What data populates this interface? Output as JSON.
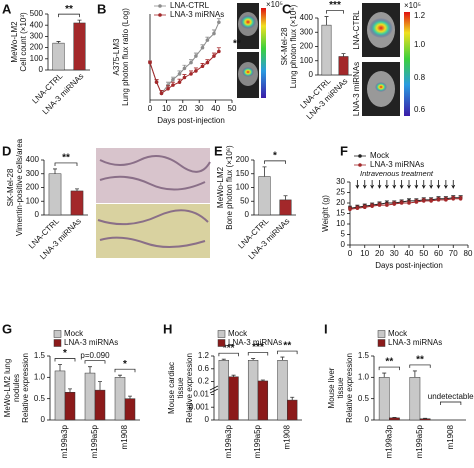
{
  "chart_data": [
    {
      "panel": "A",
      "type": "bar",
      "ylabel": [
        "MeWo-LM2",
        "Cell count (×10³)"
      ],
      "categories": [
        "LNA-CTRL",
        "LNA-3 miRNAs"
      ],
      "values": [
        240,
        420
      ],
      "errors": [
        15,
        25
      ],
      "colors": [
        "#c8c8c8",
        "#a3282a"
      ],
      "ylim": [
        0,
        500
      ],
      "yticks": [
        0,
        100,
        200,
        300,
        400,
        500
      ],
      "annotations": [
        "**"
      ]
    },
    {
      "panel": "B",
      "type": "line",
      "log": true,
      "ylabel": [
        "A375-LM3",
        "Lung photon flux ratio (Log)"
      ],
      "xlabel": "Days post-injection",
      "xlim": [
        0,
        50
      ],
      "xticks": [
        0,
        10,
        20,
        30,
        40,
        50
      ],
      "ylim": [
        0.1,
        20
      ],
      "x": [
        0,
        4,
        7,
        11,
        14,
        18,
        21,
        25,
        28,
        32,
        35,
        39,
        42
      ],
      "series": [
        {
          "name": "LNA-CTRL",
          "color": "#8c8c8c",
          "values": [
            1,
            0.3,
            0.15,
            0.25,
            0.35,
            0.5,
            0.7,
            1,
            1.5,
            2.5,
            4,
            6,
            12
          ],
          "errors": [
            0.1,
            0.05,
            0.03,
            0.05,
            0.06,
            0.1,
            0.15,
            0.2,
            0.3,
            0.5,
            0.8,
            1.5,
            3
          ]
        },
        {
          "name": "LNA-3 miRNAs",
          "color": "#a3282a",
          "values": [
            1,
            0.3,
            0.15,
            0.2,
            0.25,
            0.3,
            0.4,
            0.5,
            0.6,
            0.8,
            1,
            1.5,
            2
          ],
          "errors": [
            0.1,
            0.05,
            0.03,
            0.04,
            0.05,
            0.06,
            0.08,
            0.1,
            0.12,
            0.15,
            0.2,
            0.3,
            0.5
          ]
        }
      ],
      "annotations": [
        "**"
      ]
    },
    {
      "panel": "C",
      "type": "bar",
      "ylabel": [
        "SK-Mel-28",
        "Lung photon flux (×10⁶)"
      ],
      "categories": [
        "LNA-CTRL",
        "LNA-3 miRNAs"
      ],
      "values": [
        350,
        130
      ],
      "errors": [
        60,
        20
      ],
      "colors": [
        "#c8c8c8",
        "#a3282a"
      ],
      "ylim": [
        0,
        400
      ],
      "yticks": [
        0,
        100,
        200,
        300,
        400
      ],
      "annotations": [
        "***"
      ]
    },
    {
      "panel": "D",
      "type": "bar",
      "ylabel": [
        "SK-Mel-28",
        "Vimentin-positive cells/area"
      ],
      "categories": [
        "LNA-CTRL",
        "LNA-3 miRNAs"
      ],
      "values": [
        300,
        175
      ],
      "errors": [
        35,
        15
      ],
      "colors": [
        "#c8c8c8",
        "#a3282a"
      ],
      "ylim": [
        0,
        400
      ],
      "yticks": [
        0,
        100,
        200,
        300,
        400
      ],
      "annotations": [
        "**"
      ]
    },
    {
      "panel": "E",
      "type": "bar",
      "ylabel": [
        "MeWo-LM2",
        "Bone photon flux (×10⁶)"
      ],
      "categories": [
        "LNA-CTRL",
        "LNA-3 miRNAs"
      ],
      "values": [
        140,
        55
      ],
      "errors": [
        35,
        15
      ],
      "colors": [
        "#c8c8c8",
        "#a3282a"
      ],
      "ylim": [
        0,
        200
      ],
      "yticks": [
        0,
        50,
        100,
        150,
        200
      ],
      "annotations": [
        "*"
      ]
    },
    {
      "panel": "F",
      "type": "line",
      "ylabel": [
        "Weight (g)"
      ],
      "xlabel": "Days post-injection",
      "xlim": [
        0,
        80
      ],
      "xticks": [
        0,
        10,
        20,
        30,
        40,
        50,
        60,
        70,
        80
      ],
      "ylim": [
        0,
        30
      ],
      "yticks": [
        0,
        5,
        10,
        15,
        20,
        25,
        30
      ],
      "x": [
        0,
        5,
        10,
        15,
        20,
        25,
        30,
        35,
        40,
        45,
        50,
        55,
        60,
        65,
        70,
        75
      ],
      "series": [
        {
          "name": "Mock",
          "color": "#222222",
          "values": [
            17.5,
            18,
            18.5,
            19,
            19.5,
            20,
            20,
            20.5,
            21,
            21,
            21.5,
            21.5,
            22,
            22,
            22.5,
            22.5
          ],
          "errors": [
            1,
            1,
            1,
            1,
            1,
            1,
            1,
            1,
            1,
            1,
            1,
            1,
            1,
            1,
            1,
            1
          ]
        },
        {
          "name": "LNA-3 miRNAs",
          "color": "#a3282a",
          "values": [
            17,
            17.5,
            18,
            18.5,
            19,
            19,
            19.5,
            20,
            20,
            20.5,
            21,
            21,
            21.5,
            21.5,
            22,
            22
          ],
          "errors": [
            1,
            1,
            1,
            1,
            1,
            1,
            1,
            1,
            1,
            1,
            1,
            1,
            1,
            1,
            1,
            1
          ]
        }
      ],
      "annotations": [
        "Intravenous treatment"
      ]
    },
    {
      "panel": "G",
      "type": "bar",
      "ylabel": [
        "MeWo-LM2 lung",
        "nodules",
        "Relative expression"
      ],
      "categories": [
        "m199a3p",
        "m199a5p",
        "m1908"
      ],
      "ylim": [
        0,
        1.5
      ],
      "yticks": [
        0,
        0.5,
        {
          "value": 1,
          "label": "1.0"
        },
        1.5
      ],
      "series": [
        {
          "name": "Mock",
          "color": "#c8c8c8",
          "values": [
            1.15,
            1.1,
            1.0
          ],
          "errors": [
            0.15,
            0.15,
            0.05
          ]
        },
        {
          "name": "LNA-3 miRNAs",
          "color": "#8b1a1a",
          "values": [
            0.65,
            0.7,
            0.5
          ],
          "errors": [
            0.08,
            0.2,
            0.06
          ]
        }
      ],
      "annotations": [
        "*",
        "p=0.090",
        "*"
      ]
    },
    {
      "panel": "H",
      "type": "bar",
      "yscale": "broken",
      "ylabel": [
        "Mouse cardiac",
        "tissue",
        "Relative expression"
      ],
      "categories": [
        "m199a3p",
        "m199a5p",
        "m1908"
      ],
      "ylim": [
        0,
        1.2
      ],
      "yticks": [
        0,
        0.001,
        0.01,
        0.2,
        0.6,
        1.2
      ],
      "series": [
        {
          "name": "Mock",
          "color": "#c8c8c8",
          "values": [
            1.0,
            1.0,
            1.0
          ],
          "errors": [
            0.05,
            0.08,
            0.15
          ]
        },
        {
          "name": "LNA-3 miRNAs",
          "color": "#8b1a1a",
          "values": [
            0.35,
            0.22,
            0.006
          ],
          "errors": [
            0.05,
            0.03,
            0.002
          ]
        }
      ],
      "annotations": [
        "***",
        "***",
        "**"
      ]
    },
    {
      "panel": "I",
      "type": "bar",
      "ylabel": [
        "Mouse liver",
        "tissue",
        "Relative expression"
      ],
      "categories": [
        "m199a3p",
        "m199a5p",
        "m1908"
      ],
      "ylim": [
        0,
        1.5
      ],
      "yticks": [
        0,
        0.5,
        {
          "value": 1,
          "label": "1.0"
        },
        1.5
      ],
      "series": [
        {
          "name": "Mock",
          "color": "#c8c8c8",
          "values": [
            1.0,
            1.0,
            null
          ],
          "errors": [
            0.1,
            0.15,
            null
          ]
        },
        {
          "name": "LNA-3 miRNAs",
          "color": "#8b1a1a",
          "values": [
            0.05,
            0.03,
            null
          ],
          "errors": [
            0.01,
            0.01,
            null
          ]
        }
      ],
      "annotations": [
        "**",
        "**",
        "undetectable"
      ]
    }
  ],
  "image_B": {
    "colorbar_title": "×10⁵"
  },
  "image_C": {
    "labels": [
      "LNA-CTRL",
      "LNA-3 miRNAs"
    ],
    "colorbar_title": "×10⁵",
    "colorbar_ticks": [
      "1.2",
      "1.0",
      "0.8",
      "0.6"
    ]
  }
}
